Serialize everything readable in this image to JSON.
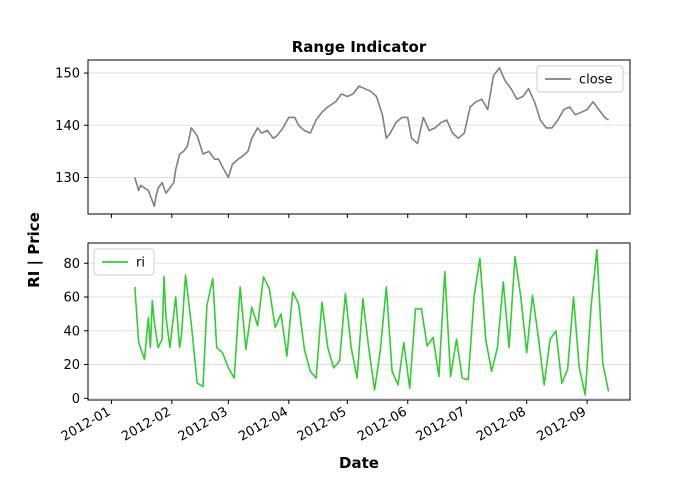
{
  "figure": {
    "ylabel": "RI | Price",
    "xlabel": "Date",
    "x_tick_labels": [
      "2012-01",
      "2012-02",
      "2012-03",
      "2012-04",
      "2012-05",
      "2012-06",
      "2012-07",
      "2012-08",
      "2012-09"
    ]
  },
  "chart_data": [
    {
      "type": "line",
      "title": "Range Indicator",
      "ylim": [
        123,
        152.5
      ],
      "xlim": [
        "2011-12-20",
        "2012-09-23"
      ],
      "y_ticks": [
        130,
        140,
        150
      ],
      "grid": "horizontal",
      "legend_position": "top-right",
      "series": [
        {
          "name": "close",
          "color": "#808080",
          "x": [
            "2012-01-13",
            "2012-01-15",
            "2012-01-16",
            "2012-01-18",
            "2012-01-20",
            "2012-01-23",
            "2012-01-24",
            "2012-01-25",
            "2012-01-27",
            "2012-01-29",
            "2012-02-02",
            "2012-02-03",
            "2012-02-05",
            "2012-02-07",
            "2012-02-09",
            "2012-02-11",
            "2012-02-14",
            "2012-02-17",
            "2012-02-20",
            "2012-02-23",
            "2012-02-25",
            "2012-02-27",
            "2012-03-01",
            "2012-03-03",
            "2012-03-06",
            "2012-03-08",
            "2012-03-11",
            "2012-03-13",
            "2012-03-16",
            "2012-03-18",
            "2012-03-21",
            "2012-03-24",
            "2012-03-26",
            "2012-03-29",
            "2012-04-01",
            "2012-04-04",
            "2012-04-06",
            "2012-04-09",
            "2012-04-12",
            "2012-04-15",
            "2012-04-18",
            "2012-04-21",
            "2012-04-25",
            "2012-04-28",
            "2012-05-01",
            "2012-05-04",
            "2012-05-07",
            "2012-05-10",
            "2012-05-13",
            "2012-05-16",
            "2012-05-19",
            "2012-05-21",
            "2012-05-23",
            "2012-05-26",
            "2012-05-29",
            "2012-06-01",
            "2012-06-03",
            "2012-06-06",
            "2012-06-09",
            "2012-06-12",
            "2012-06-15",
            "2012-06-18",
            "2012-06-21",
            "2012-06-24",
            "2012-06-27",
            "2012-06-30",
            "2012-07-03",
            "2012-07-06",
            "2012-07-09",
            "2012-07-12",
            "2012-07-15",
            "2012-07-18",
            "2012-07-21",
            "2012-07-24",
            "2012-07-27",
            "2012-07-30",
            "2012-08-02",
            "2012-08-05",
            "2012-08-08",
            "2012-08-11",
            "2012-08-14",
            "2012-08-17",
            "2012-08-20",
            "2012-08-23",
            "2012-08-26",
            "2012-08-29",
            "2012-09-01",
            "2012-09-04",
            "2012-09-07",
            "2012-09-10",
            "2012-09-12"
          ],
          "values": [
            130,
            127.5,
            128.5,
            128,
            127.5,
            124.5,
            126.5,
            128,
            129,
            127,
            129,
            131.5,
            134.5,
            135,
            136,
            139.5,
            138,
            134.5,
            135,
            133.5,
            133.5,
            132,
            130,
            132.5,
            133.5,
            134,
            135,
            137.5,
            139.5,
            138.5,
            139,
            137.5,
            138,
            139.5,
            141.5,
            141.5,
            140,
            139,
            138.5,
            141,
            142.5,
            143.5,
            144.5,
            146,
            145.5,
            146,
            147.5,
            147,
            146.5,
            145.5,
            142,
            137.5,
            138.5,
            140.5,
            141.5,
            141.5,
            137.5,
            136.5,
            141.5,
            139,
            139.5,
            140.5,
            141,
            138.5,
            137.5,
            138.5,
            143.5,
            144.5,
            145,
            143,
            149.5,
            151,
            148.5,
            147,
            145,
            145.5,
            147,
            144.5,
            141,
            139.5,
            139.5,
            141,
            143,
            143.5,
            142,
            142.5,
            143,
            144.5,
            143,
            141.5,
            141
          ]
        }
      ]
    },
    {
      "type": "line",
      "ylim": [
        -1,
        92
      ],
      "xlim": [
        "2011-12-20",
        "2012-09-23"
      ],
      "y_ticks": [
        0,
        20,
        40,
        60,
        80
      ],
      "grid": "horizontal",
      "legend_position": "top-left",
      "series": [
        {
          "name": "ri",
          "color": "#32cd32",
          "x": [
            "2012-01-13",
            "2012-01-15",
            "2012-01-18",
            "2012-01-20",
            "2012-01-21",
            "2012-01-22",
            "2012-01-23",
            "2012-01-25",
            "2012-01-27",
            "2012-01-28",
            "2012-01-29",
            "2012-01-31",
            "2012-02-03",
            "2012-02-05",
            "2012-02-06",
            "2012-02-08",
            "2012-02-11",
            "2012-02-14",
            "2012-02-17",
            "2012-02-19",
            "2012-02-22",
            "2012-02-24",
            "2012-02-27",
            "2012-03-01",
            "2012-03-04",
            "2012-03-07",
            "2012-03-10",
            "2012-03-13",
            "2012-03-16",
            "2012-03-19",
            "2012-03-22",
            "2012-03-25",
            "2012-03-28",
            "2012-03-31",
            "2012-04-03",
            "2012-04-06",
            "2012-04-09",
            "2012-04-12",
            "2012-04-15",
            "2012-04-18",
            "2012-04-21",
            "2012-04-24",
            "2012-04-27",
            "2012-04-30",
            "2012-05-03",
            "2012-05-06",
            "2012-05-09",
            "2012-05-12",
            "2012-05-15",
            "2012-05-18",
            "2012-05-21",
            "2012-05-24",
            "2012-05-27",
            "2012-05-30",
            "2012-06-02",
            "2012-06-05",
            "2012-06-08",
            "2012-06-11",
            "2012-06-14",
            "2012-06-17",
            "2012-06-20",
            "2012-06-23",
            "2012-06-26",
            "2012-06-29",
            "2012-07-02",
            "2012-07-05",
            "2012-07-08",
            "2012-07-11",
            "2012-07-14",
            "2012-07-17",
            "2012-07-20",
            "2012-07-23",
            "2012-07-26",
            "2012-07-29",
            "2012-08-01",
            "2012-08-04",
            "2012-08-07",
            "2012-08-10",
            "2012-08-13",
            "2012-08-16",
            "2012-08-19",
            "2012-08-22",
            "2012-08-25",
            "2012-08-28",
            "2012-08-31",
            "2012-09-03",
            "2012-09-06",
            "2012-09-09",
            "2012-09-12"
          ],
          "values": [
            66,
            33,
            23,
            48,
            30,
            58,
            45,
            30,
            35,
            72,
            48,
            30,
            60,
            30,
            38,
            73,
            44,
            9,
            7,
            55,
            71,
            30,
            27,
            18,
            12,
            66,
            29,
            54,
            43,
            72,
            65,
            42,
            50,
            25,
            63,
            56,
            29,
            16,
            12,
            57,
            30,
            18,
            22,
            62,
            30,
            12,
            59,
            30,
            5,
            29,
            66,
            16,
            8,
            33,
            6,
            53,
            53,
            31,
            36,
            13,
            75,
            13,
            35,
            12,
            11,
            60,
            83,
            35,
            16,
            30,
            69,
            30,
            84,
            60,
            27,
            61,
            36,
            8,
            35,
            40,
            9,
            17,
            60,
            18,
            2,
            54,
            88,
            21,
            4
          ]
        }
      ]
    }
  ]
}
